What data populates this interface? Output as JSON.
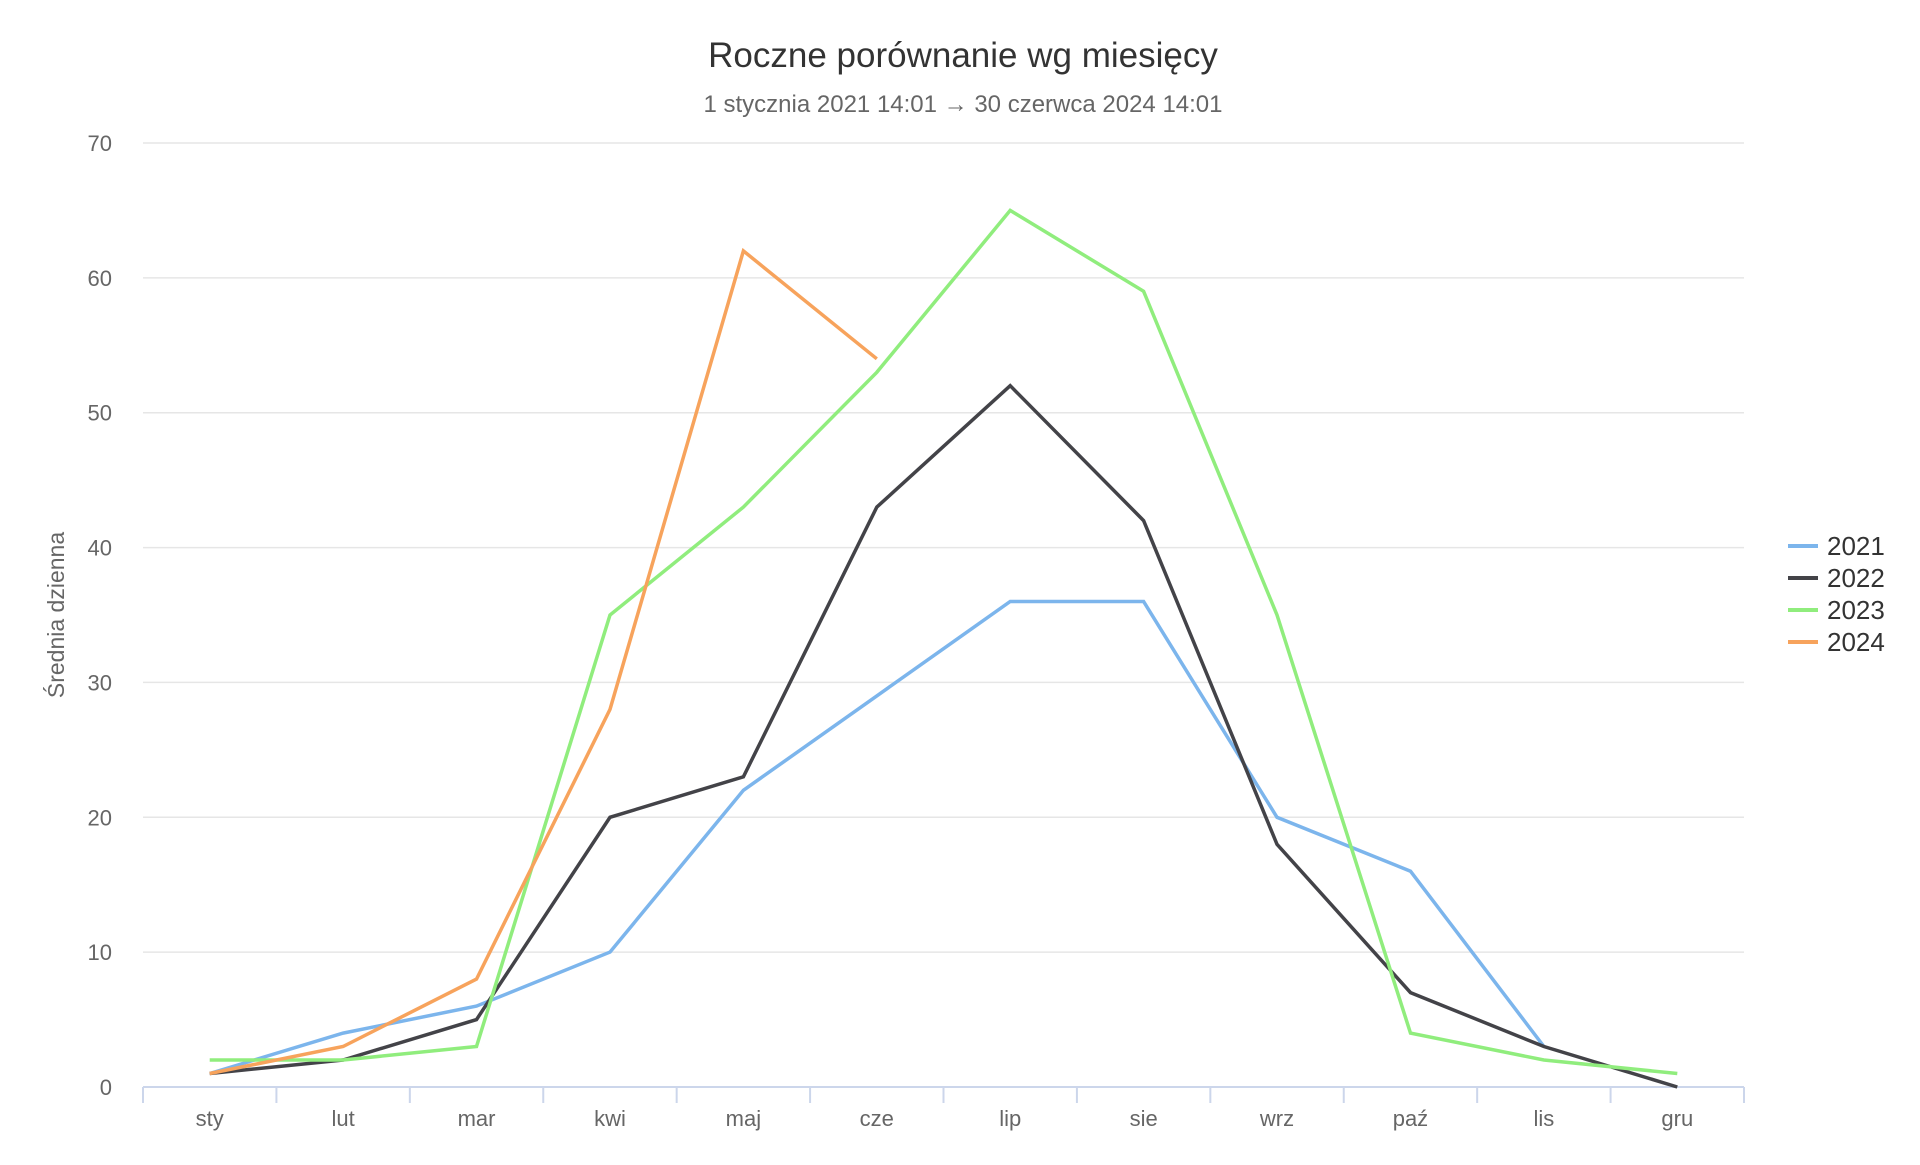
{
  "chart_data": {
    "type": "line",
    "title": "Roczne porównanie wg miesięcy",
    "subtitle": "1 stycznia 2021 14:01 → 30 czerwca 2024 14:01",
    "xlabel": "",
    "ylabel": "Średnia dzienna",
    "ylim": [
      0,
      70
    ],
    "yticks": [
      0,
      10,
      20,
      30,
      40,
      50,
      60,
      70
    ],
    "grid": true,
    "legend_position": "right",
    "categories": [
      "sty",
      "lut",
      "mar",
      "kwi",
      "maj",
      "cze",
      "lip",
      "sie",
      "wrz",
      "paź",
      "lis",
      "gru"
    ],
    "series": [
      {
        "name": "2021",
        "color": "#7cb5ec",
        "values": [
          1,
          4,
          6,
          10,
          22,
          29,
          36,
          36,
          20,
          16,
          3,
          null
        ]
      },
      {
        "name": "2022",
        "color": "#434348",
        "values": [
          1,
          2,
          5,
          20,
          23,
          43,
          52,
          42,
          18,
          7,
          3,
          0
        ]
      },
      {
        "name": "2023",
        "color": "#90ed7d",
        "values": [
          2,
          2,
          3,
          35,
          43,
          53,
          65,
          59,
          35,
          4,
          2,
          1
        ]
      },
      {
        "name": "2024",
        "color": "#f7a35c",
        "values": [
          1,
          3,
          8,
          28,
          62,
          54,
          null,
          null,
          null,
          null,
          null,
          null
        ]
      }
    ]
  }
}
